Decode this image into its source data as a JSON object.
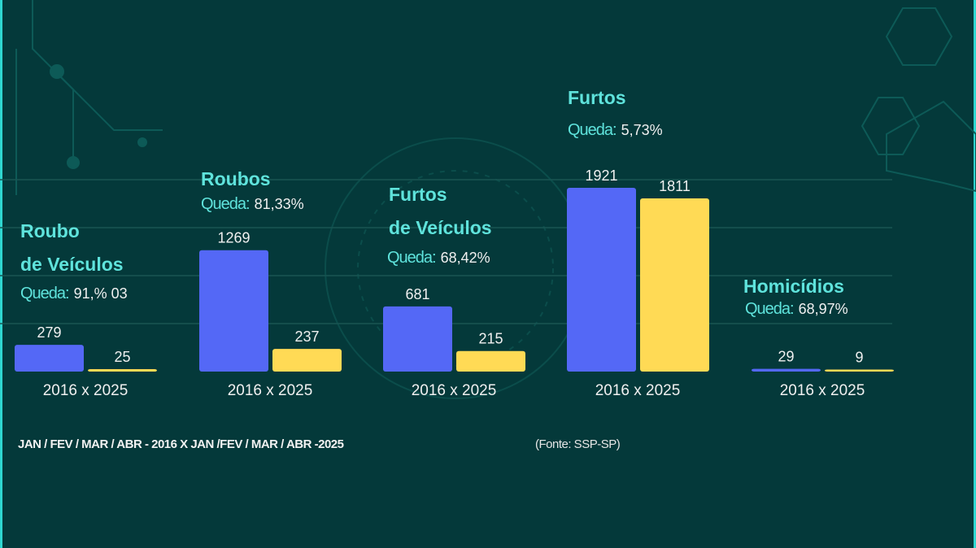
{
  "colors": {
    "background": "#04393a",
    "series_2016": "#5468f6",
    "series_2025": "#ffda55",
    "title": "#5fe3dc",
    "text": "#f0f0f0"
  },
  "chart_data": {
    "type": "bar",
    "categories": [
      "Roubo de Veículos",
      "Roubos",
      "Furtos de Veículos",
      "Furtos",
      "Homicídios"
    ],
    "category_titles": [
      "Roubo\nde Veículos",
      "Roubos",
      "Furtos\nde Veículos",
      "Furtos",
      "Homicídios"
    ],
    "drop_label": "Queda:",
    "drops": [
      "91,% 03",
      "81,33%",
      "68,42%",
      "5,73%",
      "68,97%"
    ],
    "xtick_label": "2016 x 2025",
    "series": [
      {
        "key": "2016",
        "values": [
          279,
          1269,
          681,
          1921,
          29
        ]
      },
      {
        "key": "2025",
        "values": [
          25,
          237,
          215,
          1811,
          9
        ]
      }
    ],
    "data_labels": [
      [
        "279",
        "25"
      ],
      [
        "1269",
        "237"
      ],
      [
        "681",
        "215"
      ],
      [
        "1921",
        "1811"
      ],
      [
        "29",
        "9"
      ]
    ],
    "ylim": [
      0,
      2000
    ],
    "grid": true,
    "legend": "none"
  },
  "footer": {
    "period": "JAN / FEV / MAR / ABR - 2016  X  JAN /FEV / MAR / ABR -2025",
    "source": "(Fonte: SSP-SP)"
  }
}
